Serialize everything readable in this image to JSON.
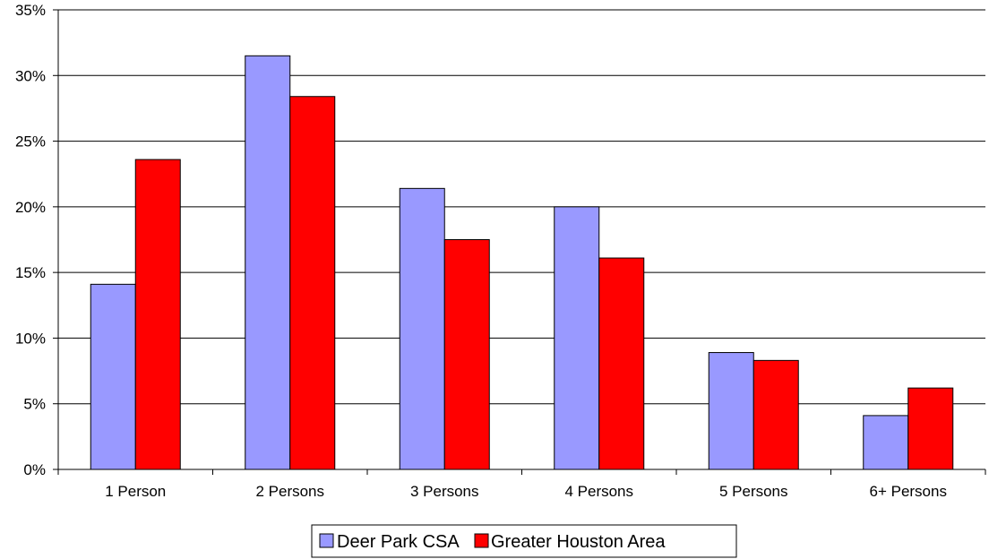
{
  "chart_data": {
    "type": "bar",
    "title": "",
    "xlabel": "",
    "ylabel": "",
    "categories": [
      "1 Person",
      "2 Persons",
      "3 Persons",
      "4 Persons",
      "5 Persons",
      "6+ Persons"
    ],
    "series": [
      {
        "name": "Deer Park CSA",
        "color": "#9999ff",
        "values": [
          14.1,
          31.5,
          21.4,
          20.0,
          8.9,
          4.1
        ]
      },
      {
        "name": "Greater Houston Area",
        "color": "#ff0000",
        "values": [
          23.6,
          28.4,
          17.5,
          16.1,
          8.3,
          6.2
        ]
      }
    ],
    "ylim": [
      0,
      35
    ],
    "yticks": [
      0,
      5,
      10,
      15,
      20,
      25,
      30,
      35
    ],
    "ytick_labels": [
      "0%",
      "5%",
      "10%",
      "15%",
      "20%",
      "25%",
      "30%",
      "35%"
    ],
    "grid": true,
    "legend_position": "bottom"
  }
}
